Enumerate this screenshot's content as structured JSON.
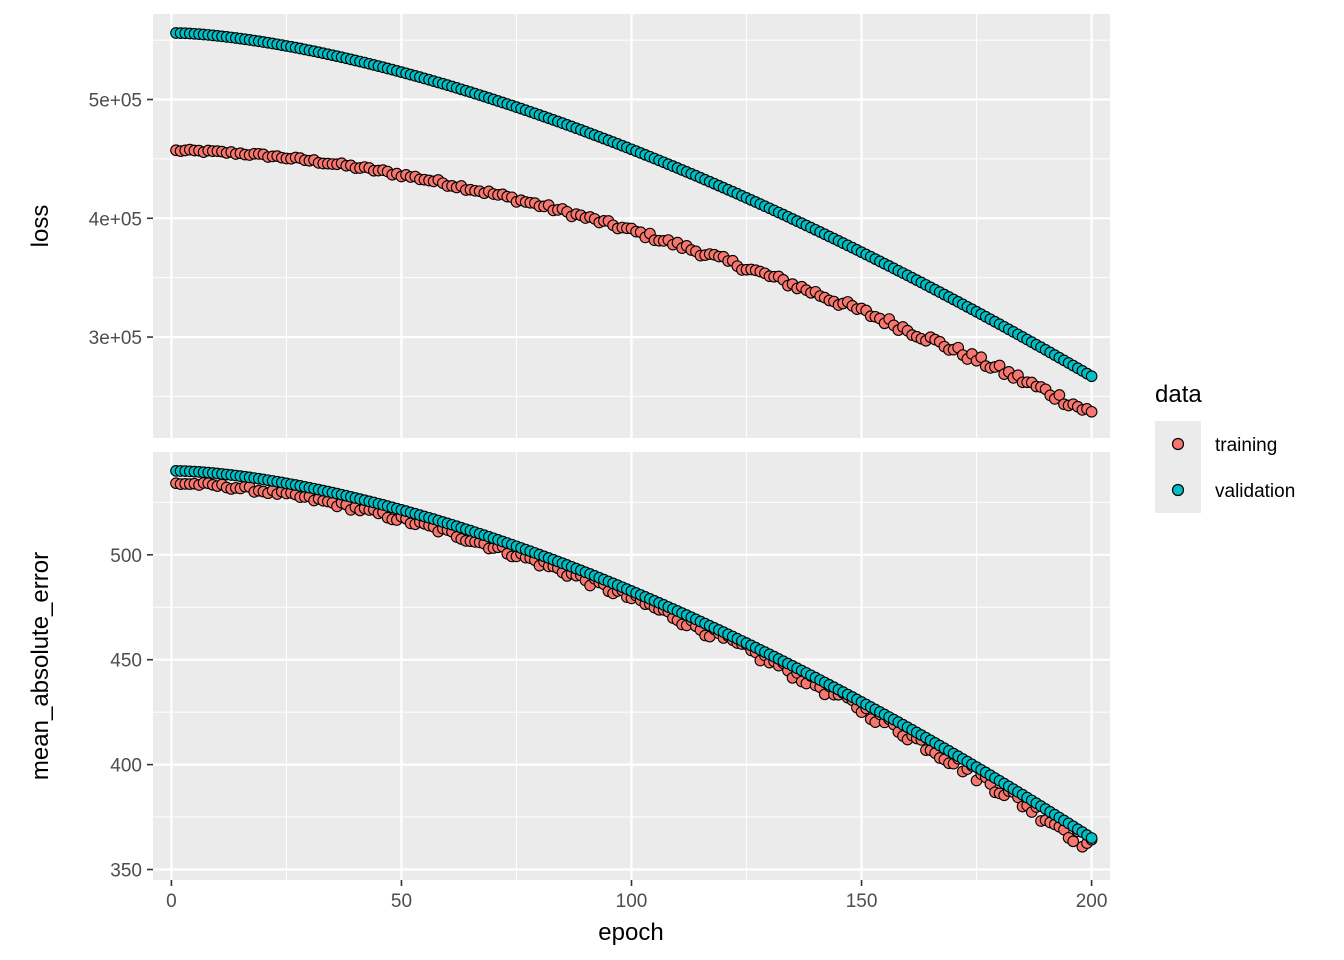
{
  "chart_data": {
    "type": "scatter",
    "x_label": "epoch",
    "x_axis": {
      "min": -4,
      "max": 204,
      "ticks": [
        0,
        50,
        100,
        150,
        200
      ],
      "tick_labels": [
        "0",
        "50",
        "100",
        "150",
        "200"
      ]
    },
    "legend": {
      "title": "data",
      "position": "right",
      "entries": [
        {
          "label": "training",
          "color": "#F8766D"
        },
        {
          "label": "validation",
          "color": "#00BFC4"
        }
      ]
    },
    "panels": [
      {
        "y_label": "loss",
        "y_axis": {
          "min": 215000,
          "max": 572000,
          "ticks": [
            300000,
            400000,
            500000
          ],
          "tick_labels": [
            "3e+05",
            "4e+05",
            "5e+05"
          ],
          "minor_ticks": [
            250000,
            350000,
            450000,
            550000
          ]
        },
        "series": [
          {
            "name": "training",
            "start": 457000,
            "end": 236000,
            "shape": 1.7,
            "noise": 3200
          },
          {
            "name": "validation",
            "start": 556000,
            "end": 267000,
            "shape": 1.55,
            "noise": 0
          }
        ]
      },
      {
        "y_label": "mean_absolute_error",
        "y_axis": {
          "min": 345,
          "max": 549,
          "ticks": [
            350,
            400,
            450,
            500
          ],
          "tick_labels": [
            "350",
            "400",
            "450",
            "500"
          ],
          "minor_ticks": [
            375,
            425,
            475,
            525
          ]
        },
        "series": [
          {
            "name": "training",
            "start": 534,
            "end": 361,
            "shape": 1.65,
            "noise": 2.8
          },
          {
            "name": "validation",
            "start": 540,
            "end": 365,
            "shape": 1.6,
            "noise": 0
          }
        ]
      }
    ],
    "epochs": {
      "from": 1,
      "to": 200
    },
    "grid": true
  }
}
